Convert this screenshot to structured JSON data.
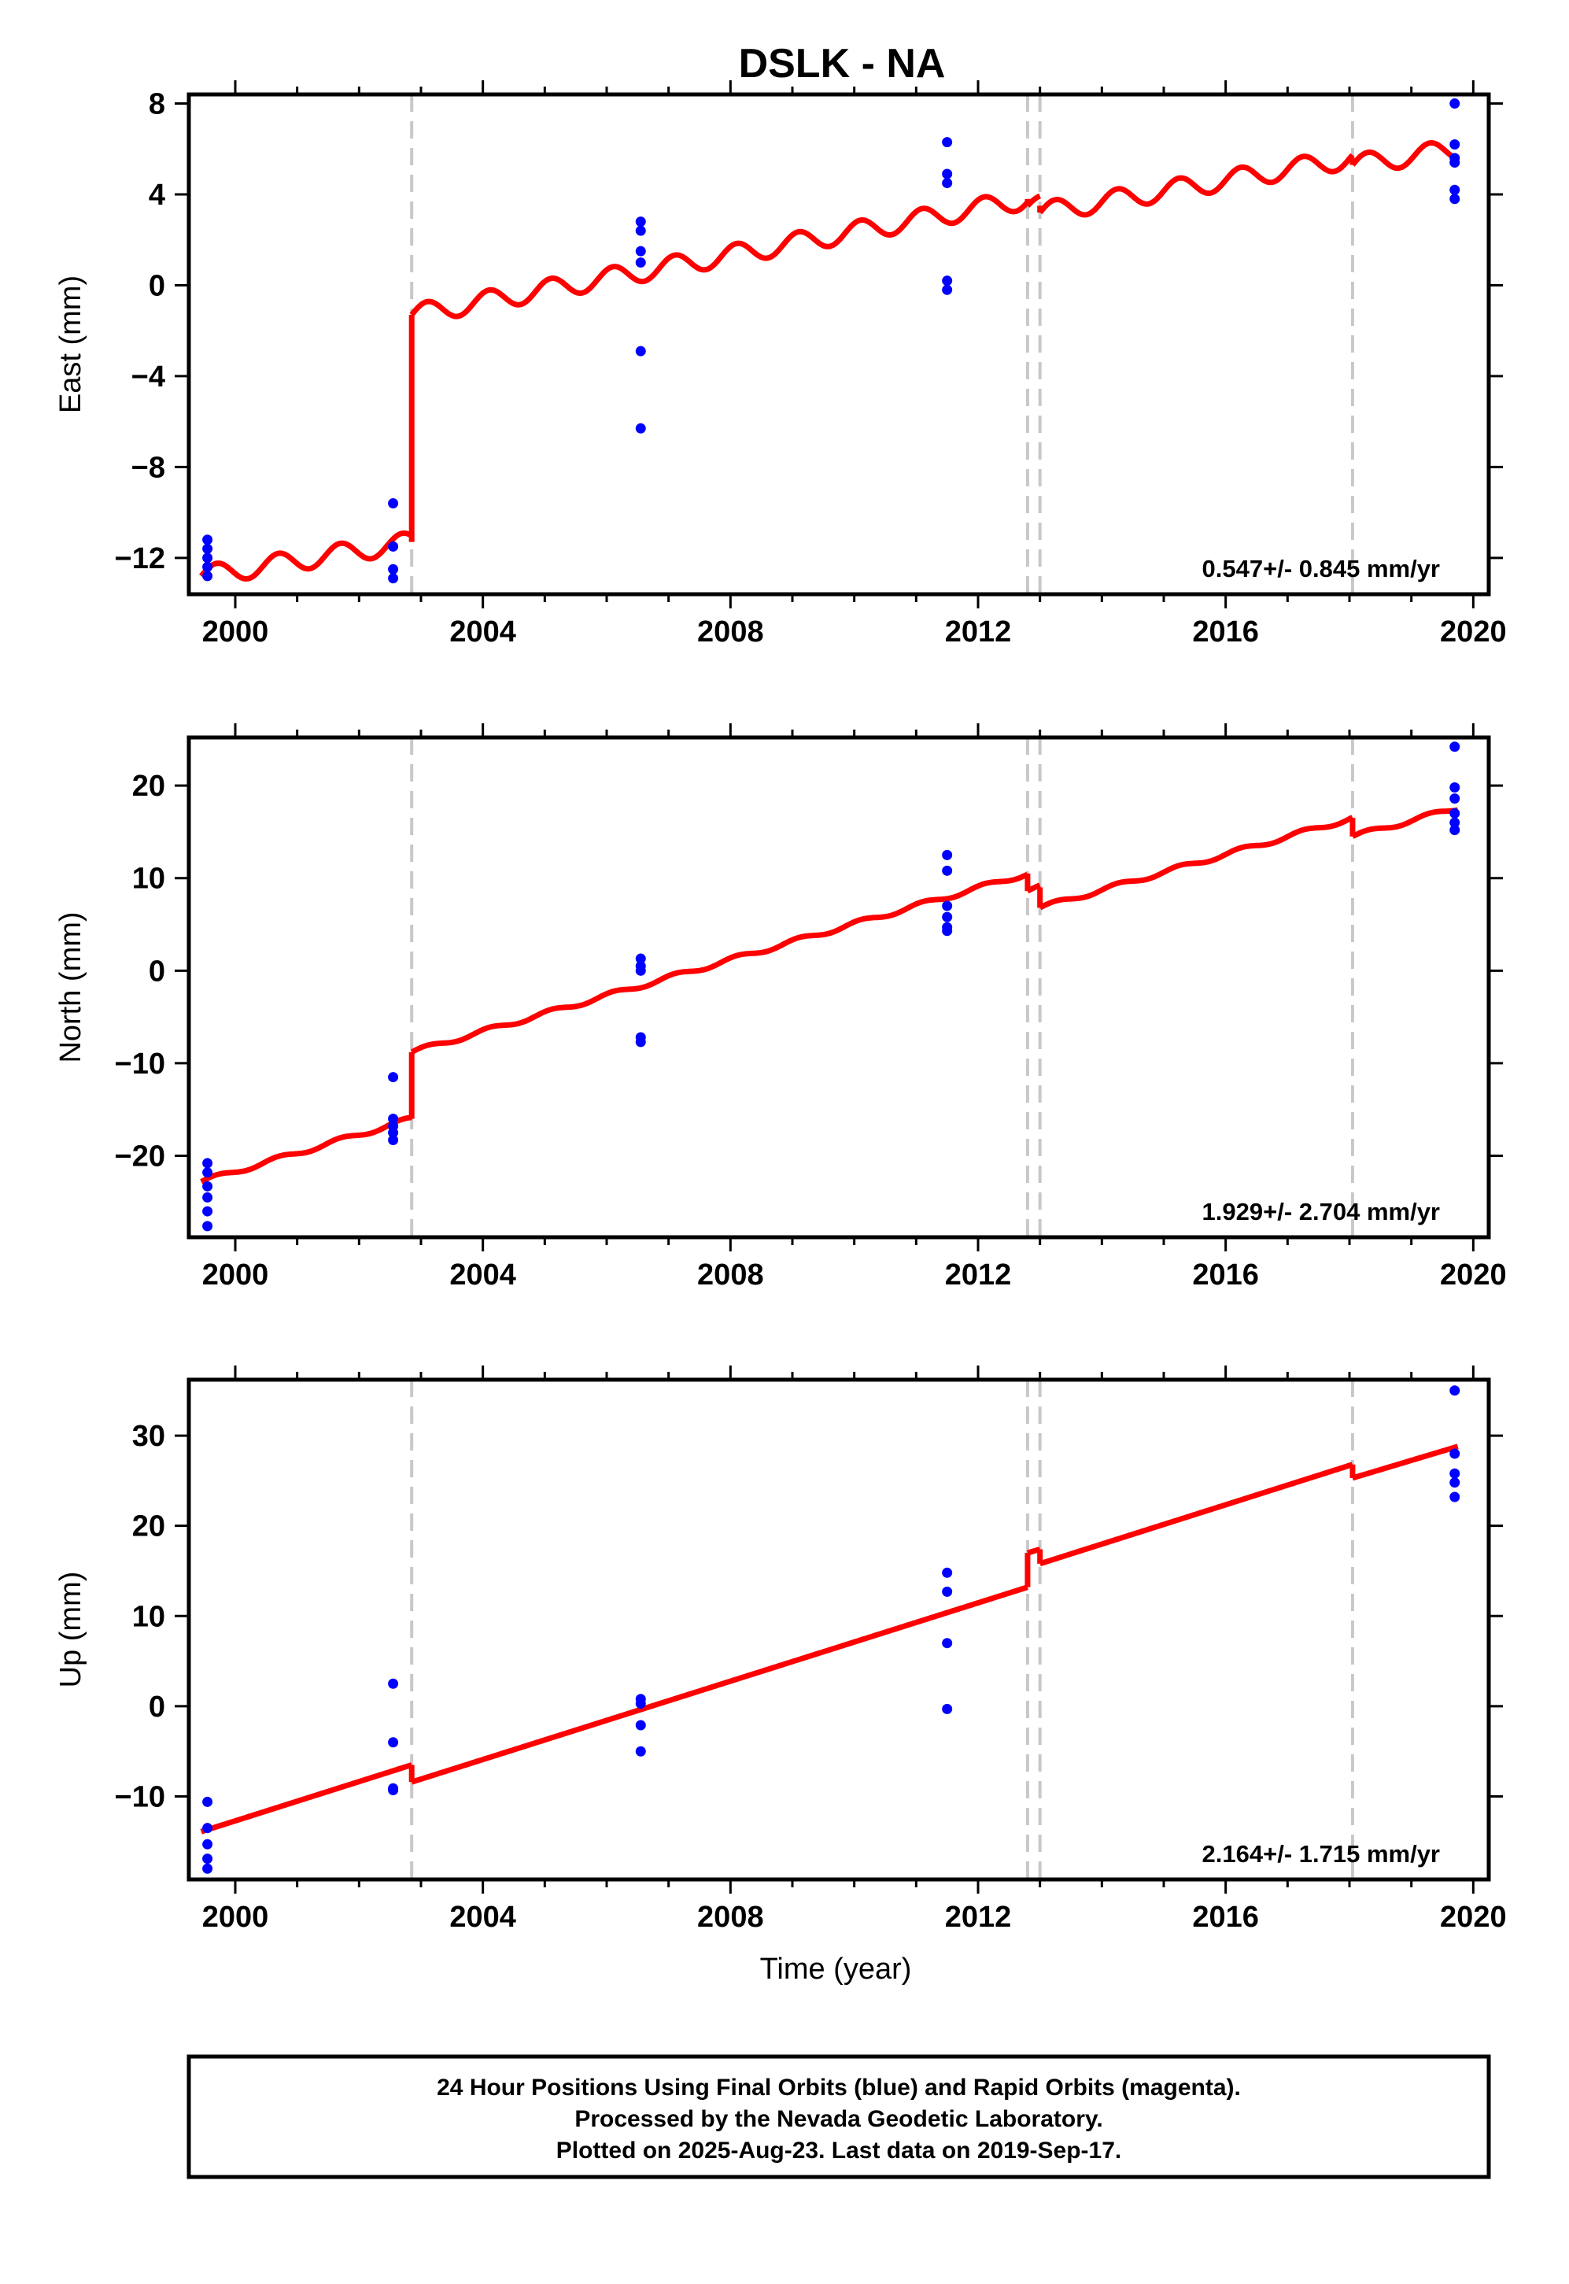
{
  "chart_data": {
    "type": "scatter",
    "title": "DSLK - NA",
    "xlabel": "Time (year)",
    "xlim": [
      1999.25,
      2020.25
    ],
    "x_ticks": [
      2000,
      2004,
      2008,
      2012,
      2016,
      2020
    ],
    "x_tick_labels": [
      "2000",
      "2004",
      "2008",
      "2012",
      "2016",
      "2020"
    ],
    "x_minor_step": 1,
    "break_lines": [
      2002.85,
      2012.8,
      2013.0,
      2018.05
    ],
    "colors": {
      "points": "#0000ff",
      "model": "#ff0000",
      "breaks": "#c8c8c8",
      "frame": "#000000"
    },
    "panels": [
      {
        "ylabel": "East (mm)",
        "ylim": [
          -13.6,
          8.4
        ],
        "y_ticks": [
          -12,
          -8,
          -4,
          0,
          4,
          8
        ],
        "y_tick_labels": [
          "−12",
          "−8",
          "−4",
          "0",
          "4",
          "8"
        ],
        "rate_text": "0.547+/- 0.845 mm/yr",
        "points": [
          {
            "x": 1999.55,
            "y": [
              -11.2,
              -11.6,
              -12.0,
              -12.4,
              -12.8
            ]
          },
          {
            "x": 2002.55,
            "y": [
              -9.6,
              -11.5,
              -12.5,
              -12.9
            ]
          },
          {
            "x": 2006.55,
            "y": [
              2.8,
              2.4,
              1.5,
              1.0,
              -2.9,
              -6.3
            ]
          },
          {
            "x": 2011.5,
            "y": [
              6.3,
              4.9,
              4.5,
              0.2,
              -0.2
            ]
          },
          {
            "x": 2019.7,
            "y": [
              8.0,
              6.2,
              5.6,
              5.4,
              4.2,
              3.8
            ]
          }
        ],
        "model": {
          "segments": [
            {
              "x0": 1999.45,
              "x1": 2002.85,
              "y0": -12.8,
              "y1": -11.3
            },
            {
              "x0": 2002.85,
              "x1": 2012.8,
              "y0": -1.3,
              "y1": 3.8
            },
            {
              "x0": 2012.8,
              "x1": 2013.0,
              "y0": 3.5,
              "y1": 3.5
            },
            {
              "x0": 2013.0,
              "x1": 2018.05,
              "y0": 3.2,
              "y1": 5.6
            },
            {
              "x0": 2018.05,
              "x1": 2019.75,
              "y0": 5.3,
              "y1": 6.0
            }
          ],
          "seasonal_amplitude": 0.45
        }
      },
      {
        "ylabel": "North (mm)",
        "ylim": [
          -28.8,
          25.2
        ],
        "y_ticks": [
          -20,
          -10,
          0,
          10,
          20
        ],
        "y_tick_labels": [
          "−20",
          "−10",
          "0",
          "10",
          "20"
        ],
        "rate_text": "1.929+/- 2.704 mm/yr",
        "points": [
          {
            "x": 1999.55,
            "y": [
              -20.8,
              -21.8,
              -23.3,
              -24.5,
              -26.0,
              -27.6
            ]
          },
          {
            "x": 2002.55,
            "y": [
              -11.5,
              -16.0,
              -16.8,
              -17.5,
              -18.3
            ]
          },
          {
            "x": 2006.55,
            "y": [
              1.3,
              0.5,
              0.0,
              -7.2,
              -7.7
            ]
          },
          {
            "x": 2011.5,
            "y": [
              12.5,
              10.8,
              7.0,
              5.8,
              4.7,
              4.3
            ]
          },
          {
            "x": 2019.7,
            "y": [
              24.2,
              19.8,
              18.6,
              17.0,
              16.0,
              15.2
            ]
          }
        ],
        "model": {
          "segments": [
            {
              "x0": 1999.45,
              "x1": 2002.85,
              "y0": -22.8,
              "y1": -16.0
            },
            {
              "x0": 2002.85,
              "x1": 2012.8,
              "y0": -8.8,
              "y1": 10.5
            },
            {
              "x0": 2012.8,
              "x1": 2013.0,
              "y0": 8.6,
              "y1": 9.0
            },
            {
              "x0": 2013.0,
              "x1": 2018.05,
              "y0": 6.8,
              "y1": 16.5
            },
            {
              "x0": 2018.05,
              "x1": 2019.75,
              "y0": 14.5,
              "y1": 17.6
            }
          ],
          "seasonal_amplitude": 0.25
        }
      },
      {
        "ylabel": "Up (mm)",
        "ylim": [
          -19.2,
          36.2
        ],
        "y_ticks": [
          -10,
          0,
          10,
          20,
          30
        ],
        "y_tick_labels": [
          "−10",
          "0",
          "10",
          "20",
          "30"
        ],
        "rate_text": "2.164+/- 1.715 mm/yr",
        "points": [
          {
            "x": 1999.55,
            "y": [
              -10.6,
              -13.5,
              -15.3,
              -16.9,
              -18.0
            ]
          },
          {
            "x": 2002.55,
            "y": [
              2.5,
              -4.0,
              -9.1,
              -9.3
            ]
          },
          {
            "x": 2006.55,
            "y": [
              0.8,
              0.3,
              -2.1,
              -5.0
            ]
          },
          {
            "x": 2011.5,
            "y": [
              14.8,
              12.7,
              7.0,
              -0.3
            ]
          },
          {
            "x": 2019.7,
            "y": [
              35.0,
              28.0,
              25.8,
              24.8,
              23.2
            ]
          }
        ],
        "model": {
          "segments": [
            {
              "x0": 1999.45,
              "x1": 2002.85,
              "y0": -13.9,
              "y1": -6.5
            },
            {
              "x0": 2002.85,
              "x1": 2012.8,
              "y0": -8.4,
              "y1": 13.2
            },
            {
              "x0": 2012.8,
              "x1": 2013.0,
              "y0": 17.0,
              "y1": 17.4
            },
            {
              "x0": 2013.0,
              "x1": 2018.05,
              "y0": 15.8,
              "y1": 26.8
            },
            {
              "x0": 2018.05,
              "x1": 2019.75,
              "y0": 25.3,
              "y1": 28.8
            }
          ],
          "seasonal_amplitude": 0.0
        }
      }
    ]
  },
  "caption": {
    "lines": [
      "24 Hour Positions Using Final Orbits (blue) and Rapid Orbits (magenta).",
      "Processed by the Nevada Geodetic Laboratory.",
      "Plotted on 2025-Aug-23. Last data on 2019-Sep-17."
    ]
  }
}
